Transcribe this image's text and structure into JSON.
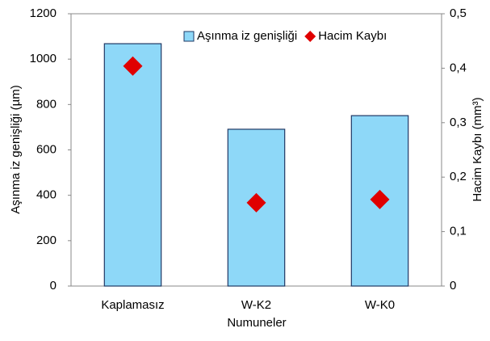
{
  "chart_data": {
    "type": "bar_scatter",
    "x_label": "Numuneler",
    "y_label": "Aşınma iz genişliği (µm)",
    "y2_label": "Hacim Kaybı (mm³)",
    "categories": [
      "Kaplamasız",
      "W-K2",
      "W-K0"
    ],
    "series": [
      {
        "name": "Aşınma iz genişliği",
        "type": "bar",
        "color": "#8ed8f8",
        "values": [
          1068,
          691,
          751
        ]
      },
      {
        "name": "Hacim Kaybı",
        "type": "scatter",
        "axis": "y2",
        "color": "#e00000",
        "values": [
          0.404,
          0.153,
          0.159
        ]
      }
    ],
    "ylim": [
      0,
      1200
    ],
    "yticks": [
      0,
      200,
      400,
      600,
      800,
      1000,
      1200
    ],
    "y2lim": [
      0,
      0.5
    ],
    "y2ticks": [
      0,
      {
        "value": 0.1,
        "label": "0,1"
      },
      {
        "value": 0.2,
        "label": "0,2"
      },
      {
        "value": 0.3,
        "label": "0,3"
      },
      {
        "value": 0.4,
        "label": "0,4"
      },
      {
        "value": 0.5,
        "label": "0,5"
      }
    ],
    "legend": "top-right"
  }
}
